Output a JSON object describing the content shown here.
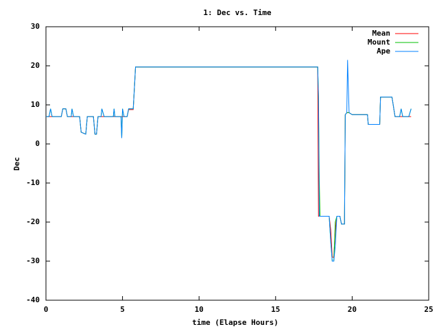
{
  "chart_data": {
    "type": "line",
    "title": "1: Dec vs. Time",
    "x_label": "time (Elapse Hours)",
    "y_label": "Dec",
    "x": [
      0,
      0.2,
      0.3,
      0.4,
      1.0,
      1.1,
      1.3,
      1.4,
      1.65,
      1.7,
      1.8,
      2.2,
      2.3,
      2.6,
      2.7,
      3.1,
      3.2,
      3.3,
      3.4,
      3.6,
      3.65,
      3.8,
      4.4,
      4.45,
      4.5,
      4.9,
      4.95,
      5.0,
      5.1,
      5.3,
      5.4,
      5.7,
      5.8,
      5.85,
      17.75,
      17.8,
      17.85,
      17.9,
      18.5,
      18.6,
      18.7,
      18.8,
      18.9,
      19.0,
      19.2,
      19.3,
      19.5,
      19.55,
      19.65,
      19.7,
      19.8,
      20.0,
      21.0,
      21.05,
      21.8,
      21.85,
      22.6,
      22.8,
      23.1,
      23.2,
      23.3,
      23.7,
      23.85
    ],
    "series": [
      {
        "name": "Mean",
        "color": "#ff0000",
        "values": [
          7,
          7,
          7,
          7,
          7,
          9,
          9,
          7,
          7,
          7,
          7,
          7,
          3,
          2.5,
          7,
          7,
          2.5,
          2.5,
          7,
          7,
          7,
          7,
          7,
          7,
          7,
          7,
          7,
          7,
          7,
          7,
          8.8,
          8.8,
          16,
          19.7,
          19.7,
          -18.5,
          -18.5,
          -18.5,
          -18.5,
          -22,
          -29,
          -29,
          -22,
          -18.5,
          -18.5,
          -20.5,
          -20.5,
          7.5,
          8,
          8,
          8,
          7.5,
          7.5,
          5,
          5,
          12,
          12,
          7,
          7,
          7,
          7,
          7,
          7
        ]
      },
      {
        "name": "Mount",
        "color": "#00c000",
        "values": [
          7,
          7,
          9,
          7,
          7,
          9,
          9,
          7,
          7,
          9,
          7,
          7,
          3,
          2.5,
          7,
          7,
          2.5,
          2.5,
          7,
          7,
          9,
          7,
          7,
          9,
          7,
          7,
          1.5,
          9,
          7,
          7,
          9,
          9,
          16,
          19.7,
          19.7,
          12,
          -9,
          -18.5,
          -18.5,
          -25,
          -30,
          -30,
          -20,
          -18.5,
          -18.5,
          -20.5,
          -20.5,
          7.5,
          8,
          8,
          8,
          7.5,
          7.5,
          5,
          5,
          12,
          12,
          7,
          7,
          9,
          7,
          7,
          9
        ]
      },
      {
        "name": "Ape",
        "color": "#0080ff",
        "values": [
          7,
          7,
          9,
          7,
          7,
          9,
          9,
          7,
          7,
          9,
          7,
          7,
          3,
          2.5,
          7,
          7,
          2.5,
          2.5,
          7,
          7,
          9,
          7,
          7,
          9,
          7,
          7,
          1.5,
          9,
          7,
          7,
          9,
          9,
          16,
          19.7,
          19.7,
          12,
          -18.5,
          -18.5,
          -18.5,
          -25,
          -30,
          -30,
          -26,
          -18.5,
          -18.5,
          -20.5,
          -20.5,
          7.5,
          8,
          21.5,
          8,
          7.5,
          7.5,
          5,
          5,
          12,
          12,
          7,
          7,
          9,
          7,
          7,
          9
        ]
      }
    ],
    "xlim": [
      0,
      25
    ],
    "xticks": [
      0,
      5,
      10,
      15,
      20,
      25
    ],
    "ylim": [
      -40,
      30
    ],
    "yticks": [
      -40,
      -30,
      -20,
      -10,
      0,
      10,
      20,
      30
    ],
    "legend": "upper right"
  }
}
